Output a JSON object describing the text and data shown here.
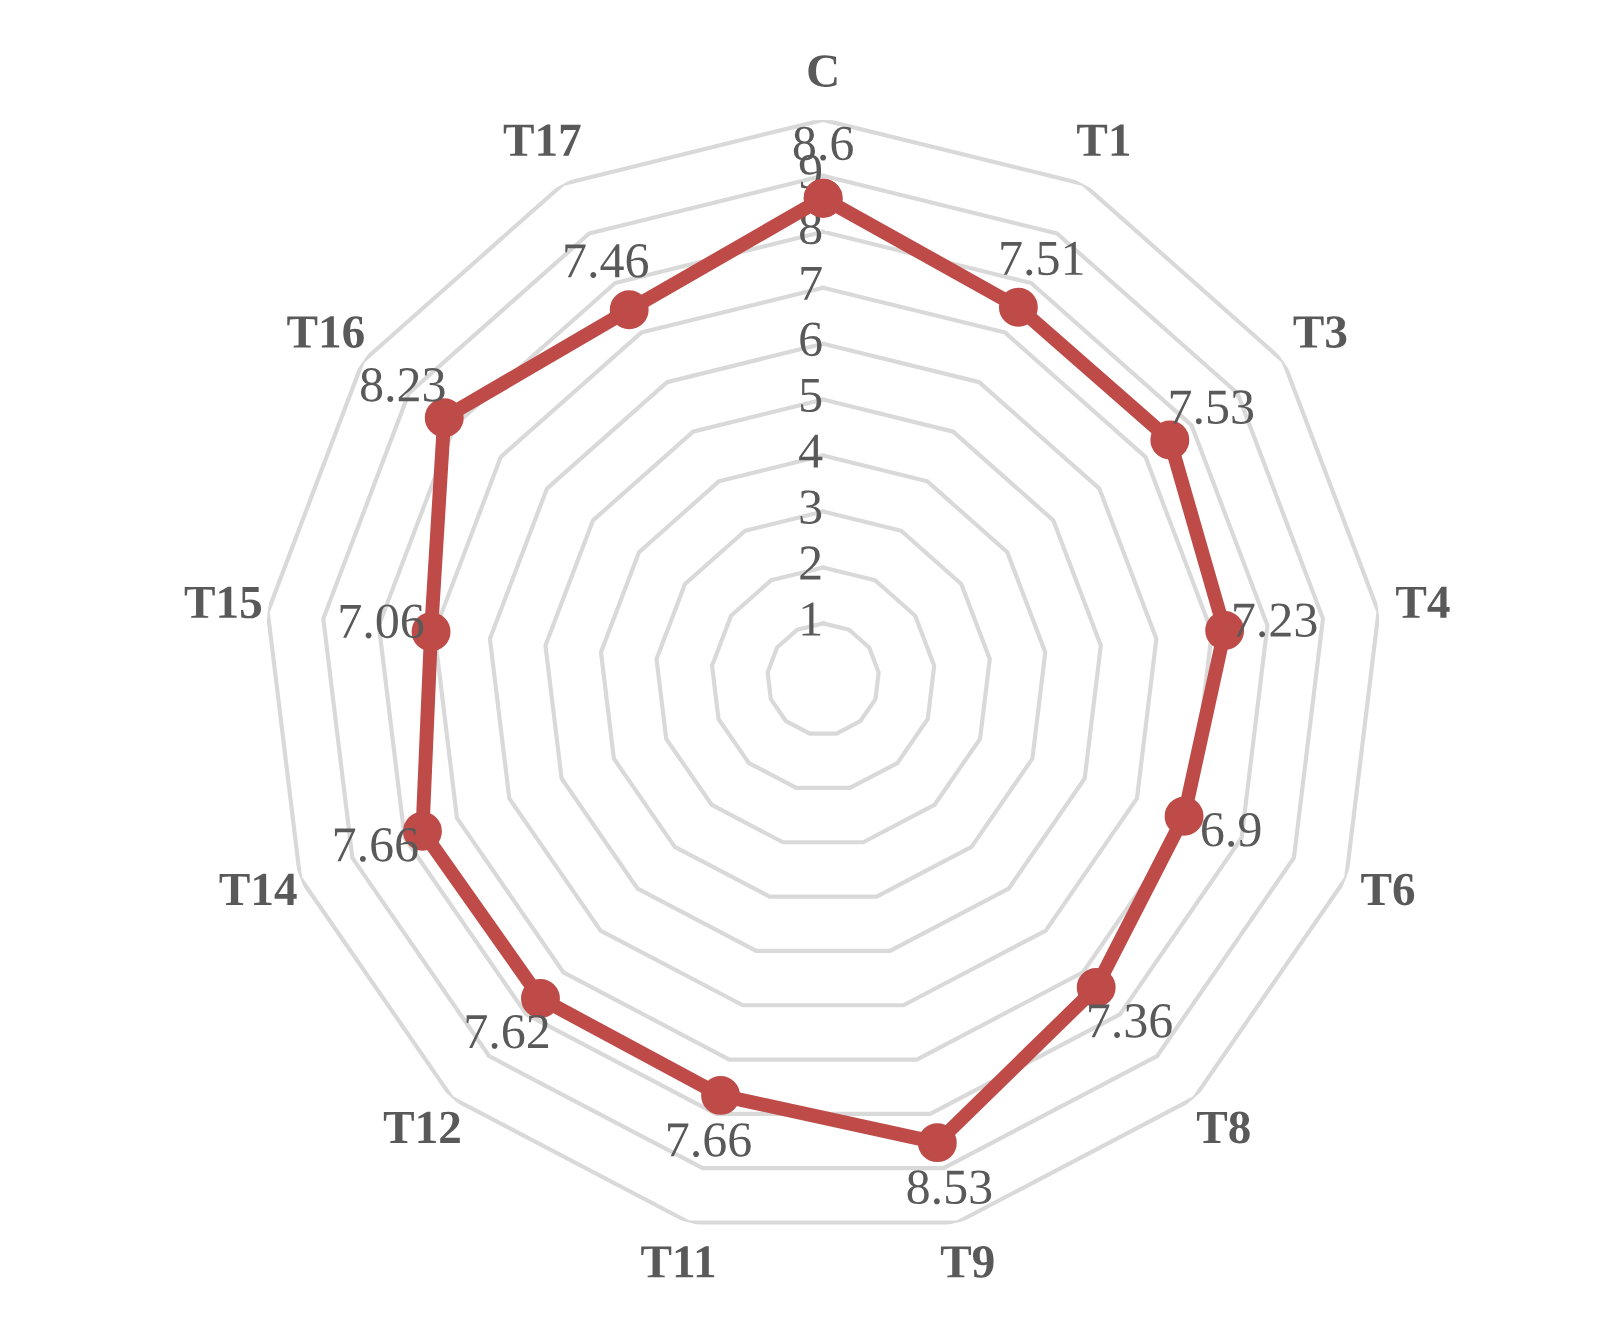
{
  "chart_data": {
    "type": "radar",
    "categories": [
      "C",
      "T1",
      "T3",
      "T4",
      "T6",
      "T8",
      "T9",
      "T11",
      "T12",
      "T14",
      "T15",
      "T16",
      "T17"
    ],
    "series": [
      {
        "color": "#be4b48",
        "values": [
          8.6,
          7.51,
          7.53,
          7.23,
          6.9,
          7.36,
          8.53,
          7.66,
          7.62,
          7.66,
          7.06,
          8.23,
          7.46
        ]
      }
    ],
    "ylim": [
      0,
      10
    ],
    "yticks": [
      1,
      2,
      3,
      4,
      5,
      6,
      7,
      8,
      9
    ],
    "grid": true,
    "marker": "circle",
    "line_style": "solid",
    "data_labels": true
  }
}
